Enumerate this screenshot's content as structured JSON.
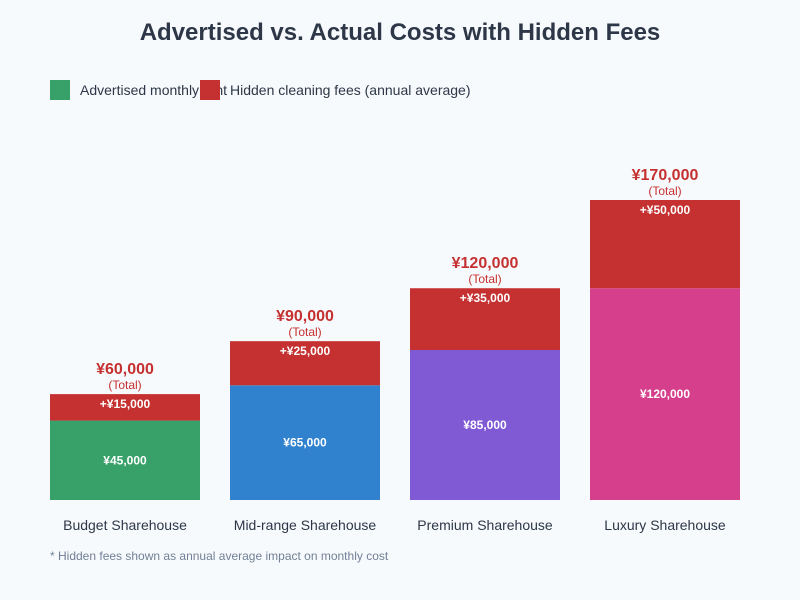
{
  "chart_data": {
    "type": "bar",
    "stacked": true,
    "title": "Advertised vs. Actual Costs with Hidden Fees",
    "categories": [
      "Budget Sharehouse",
      "Mid-range Sharehouse",
      "Premium Sharehouse",
      "Luxury Sharehouse"
    ],
    "series": [
      {
        "name": "Advertised monthly rent",
        "values": [
          45000,
          65000,
          85000,
          120000
        ],
        "labels": [
          "¥45,000",
          "¥65,000",
          "¥85,000",
          "¥120,000"
        ],
        "colors": [
          "#38a169",
          "#3182ce",
          "#805ad5",
          "#d53f8c"
        ]
      },
      {
        "name": "Hidden cleaning fees (annual average)",
        "values": [
          15000,
          25000,
          35000,
          50000
        ],
        "labels": [
          "+¥15,000",
          "+¥25,000",
          "+¥35,000",
          "+¥50,000"
        ],
        "color": "#c53030"
      }
    ],
    "totals": [
      "¥60,000",
      "¥90,000",
      "¥120,000",
      "¥170,000"
    ],
    "total_suffix": "(Total)",
    "ylim": [
      0,
      170000
    ],
    "grid": false,
    "legend_placement": "top-left",
    "legend_swatch_colors": [
      "#38a169",
      "#c53030"
    ],
    "footnote": "* Hidden fees shown as annual average impact on monthly cost"
  }
}
